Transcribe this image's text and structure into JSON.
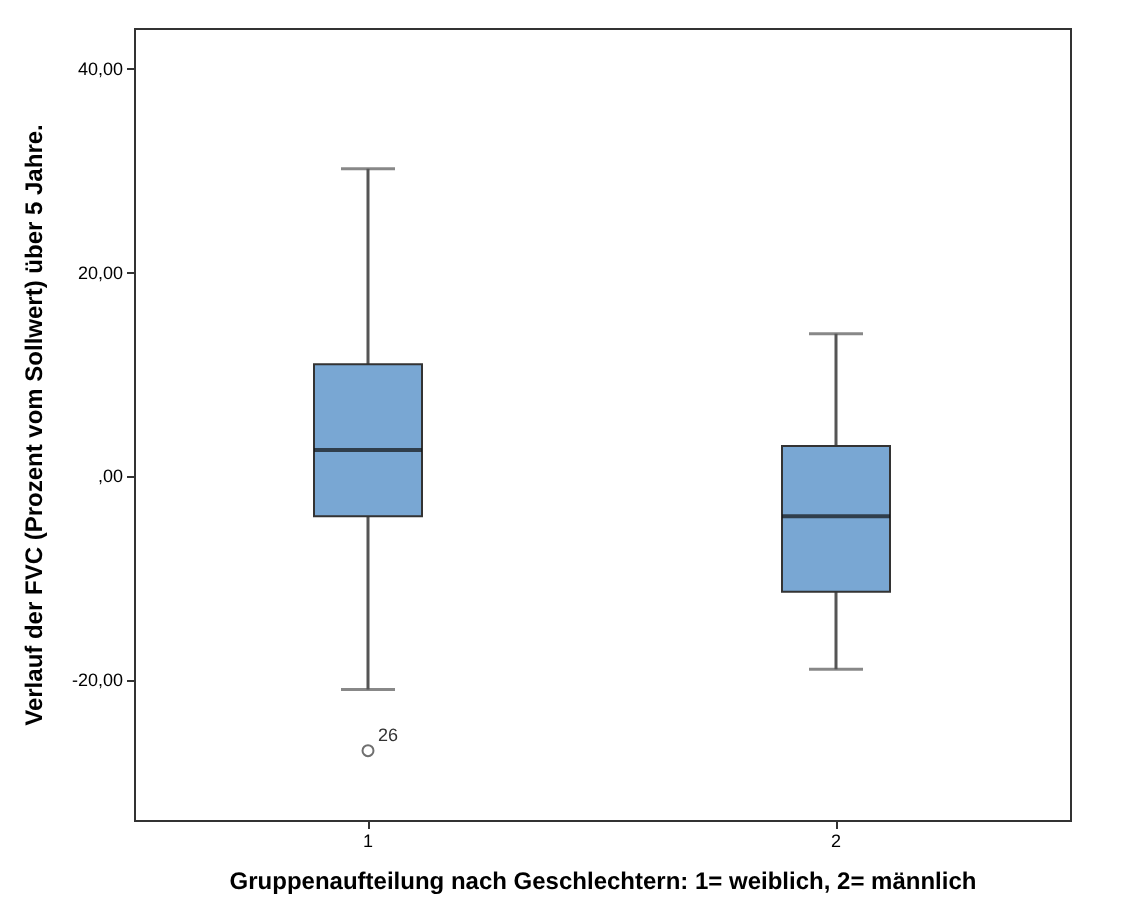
{
  "chart_data": {
    "type": "box",
    "xlabel": "Gruppenaufteilung nach Geschlechtern: 1= weiblich, 2= männlich",
    "ylabel": "Verlauf der FVC (Prozent vom Sollwert) über 5 Jahre.",
    "categories": [
      "1",
      "2"
    ],
    "color": "#79a7d3",
    "boxes": [
      {
        "low": -21.0,
        "q1": -4.0,
        "median": 2.5,
        "q3": 10.9,
        "high": 30.1,
        "outliers": [
          -27.0
        ]
      },
      {
        "low": -19.0,
        "q1": -11.4,
        "median": -4.0,
        "q3": 2.9,
        "high": 13.9
      }
    ],
    "ylim": [
      -33.8,
      43.9
    ],
    "yticks": [
      {
        "value": -20,
        "label": "-20,00"
      },
      {
        "value": 0,
        "label": ",00"
      },
      {
        "value": 20,
        "label": "20,00"
      },
      {
        "value": 40,
        "label": "40,00"
      }
    ],
    "annotations": [
      "26"
    ]
  }
}
